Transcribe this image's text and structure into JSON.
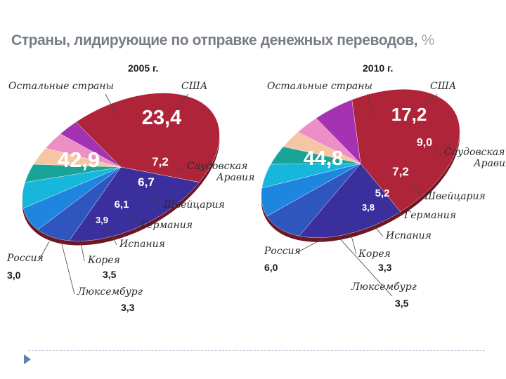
{
  "title": "Страны, лидирующие по отправке денежных переводов,",
  "title_unit": "%",
  "colors": {
    "others": "#b0243a",
    "usa": "#3b2f9e",
    "saudi": "#2f56bf",
    "switzerland": "#1f86e0",
    "germany": "#17b7dc",
    "spain": "#1aa397",
    "korea": "#f6c6a4",
    "luxembourg": "#ec8fc4",
    "russia": "#a432b3"
  },
  "chart_data": [
    {
      "type": "pie",
      "title": "2005 г.",
      "slices": [
        {
          "key": "others",
          "label": "Остальные страны",
          "value": 42.9,
          "value_label": "42,9"
        },
        {
          "key": "usa",
          "label": "США",
          "value": 23.4,
          "value_label": "23,4"
        },
        {
          "key": "saudi",
          "label": "Саудовская Аравия",
          "label_lines": [
            "Саудовская",
            "Аравия"
          ],
          "value": 7.2,
          "value_label": "7,2"
        },
        {
          "key": "switzerland",
          "label": "Швейцария",
          "value": 6.7,
          "value_label": "6,7"
        },
        {
          "key": "germany",
          "label": "Германия",
          "value": 6.1,
          "value_label": "6,1"
        },
        {
          "key": "spain",
          "label": "Испания",
          "value": 3.9,
          "value_label": "3,9"
        },
        {
          "key": "korea",
          "label": "Корея",
          "value": 3.5,
          "value_label": "3,5"
        },
        {
          "key": "luxembourg",
          "label": "Люксембург",
          "value": 3.3,
          "value_label": "3,3"
        },
        {
          "key": "russia",
          "label": "Россия",
          "value": 3.0,
          "value_label": "3,0"
        }
      ]
    },
    {
      "type": "pie",
      "title": "2010 г.",
      "slices": [
        {
          "key": "others",
          "label": "Остальные страны",
          "value": 44.8,
          "value_label": "44,8"
        },
        {
          "key": "usa",
          "label": "США",
          "value": 17.2,
          "value_label": "17,2"
        },
        {
          "key": "saudi",
          "label": "Саудовская Аравия",
          "label_lines": [
            "Саудовская",
            "Аравия"
          ],
          "value": 9.0,
          "value_label": "9,0"
        },
        {
          "key": "switzerland",
          "label": "Швейцария",
          "value": 7.2,
          "value_label": "7,2"
        },
        {
          "key": "germany",
          "label": "Германия",
          "value": 5.2,
          "value_label": "5,2"
        },
        {
          "key": "spain",
          "label": "Испания",
          "value": 3.8,
          "value_label": "3,8"
        },
        {
          "key": "korea",
          "label": "Корея",
          "value": 3.3,
          "value_label": "3,3"
        },
        {
          "key": "luxembourg",
          "label": "Люксембург",
          "value": 3.5,
          "value_label": "3,5"
        },
        {
          "key": "russia",
          "label": "Россия",
          "value": 6.0,
          "value_label": "6,0"
        }
      ]
    }
  ]
}
